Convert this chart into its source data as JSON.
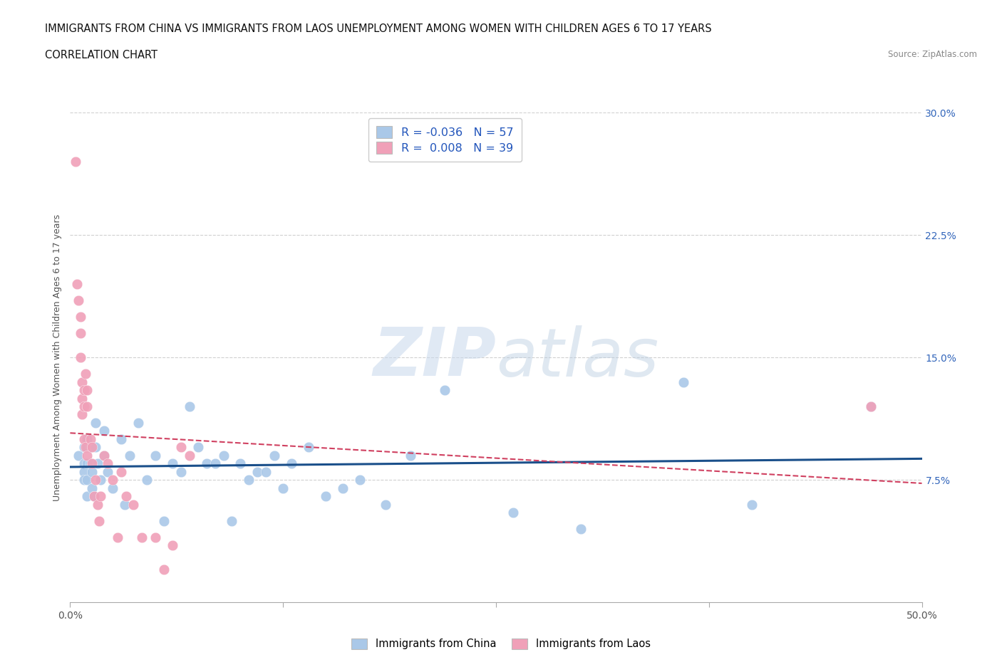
{
  "title_line1": "IMMIGRANTS FROM CHINA VS IMMIGRANTS FROM LAOS UNEMPLOYMENT AMONG WOMEN WITH CHILDREN AGES 6 TO 17 YEARS",
  "title_line2": "CORRELATION CHART",
  "source": "Source: ZipAtlas.com",
  "ylabel": "Unemployment Among Women with Children Ages 6 to 17 years",
  "xlim": [
    0.0,
    0.5
  ],
  "ylim": [
    0.0,
    0.3
  ],
  "xticks": [
    0.0,
    0.125,
    0.25,
    0.375,
    0.5
  ],
  "xtick_labels": [
    "0.0%",
    "",
    "",
    "",
    "50.0%"
  ],
  "ytick_labels_right": [
    "",
    "7.5%",
    "15.0%",
    "22.5%",
    "30.0%"
  ],
  "yticks_right": [
    0.0,
    0.075,
    0.15,
    0.225,
    0.3
  ],
  "watermark_zip": "ZIP",
  "watermark_atlas": "atlas",
  "legend_china_R": "-0.036",
  "legend_china_N": "57",
  "legend_laos_R": "0.008",
  "legend_laos_N": "39",
  "china_color": "#aac8e8",
  "laos_color": "#f0a0b8",
  "china_line_color": "#1a4f8a",
  "laos_line_color": "#d04060",
  "china_x": [
    0.005,
    0.008,
    0.008,
    0.008,
    0.008,
    0.01,
    0.01,
    0.01,
    0.01,
    0.01,
    0.012,
    0.012,
    0.013,
    0.013,
    0.014,
    0.015,
    0.015,
    0.016,
    0.018,
    0.02,
    0.02,
    0.022,
    0.025,
    0.03,
    0.032,
    0.035,
    0.04,
    0.045,
    0.05,
    0.055,
    0.06,
    0.065,
    0.07,
    0.075,
    0.08,
    0.085,
    0.09,
    0.095,
    0.1,
    0.105,
    0.11,
    0.115,
    0.12,
    0.125,
    0.13,
    0.14,
    0.15,
    0.16,
    0.17,
    0.185,
    0.2,
    0.22,
    0.26,
    0.3,
    0.36,
    0.4,
    0.47
  ],
  "china_y": [
    0.09,
    0.095,
    0.085,
    0.08,
    0.075,
    0.1,
    0.095,
    0.085,
    0.075,
    0.065,
    0.095,
    0.085,
    0.08,
    0.07,
    0.065,
    0.11,
    0.095,
    0.085,
    0.075,
    0.105,
    0.09,
    0.08,
    0.07,
    0.1,
    0.06,
    0.09,
    0.11,
    0.075,
    0.09,
    0.05,
    0.085,
    0.08,
    0.12,
    0.095,
    0.085,
    0.085,
    0.09,
    0.05,
    0.085,
    0.075,
    0.08,
    0.08,
    0.09,
    0.07,
    0.085,
    0.095,
    0.065,
    0.07,
    0.075,
    0.06,
    0.09,
    0.13,
    0.055,
    0.045,
    0.135,
    0.06,
    0.12
  ],
  "laos_x": [
    0.003,
    0.004,
    0.005,
    0.006,
    0.006,
    0.006,
    0.007,
    0.007,
    0.007,
    0.008,
    0.008,
    0.008,
    0.009,
    0.009,
    0.01,
    0.01,
    0.01,
    0.012,
    0.013,
    0.013,
    0.014,
    0.015,
    0.016,
    0.017,
    0.018,
    0.02,
    0.022,
    0.025,
    0.028,
    0.03,
    0.033,
    0.037,
    0.042,
    0.05,
    0.055,
    0.06,
    0.065,
    0.07,
    0.47
  ],
  "laos_y": [
    0.27,
    0.195,
    0.185,
    0.175,
    0.165,
    0.15,
    0.135,
    0.125,
    0.115,
    0.13,
    0.12,
    0.1,
    0.095,
    0.14,
    0.13,
    0.12,
    0.09,
    0.1,
    0.095,
    0.085,
    0.065,
    0.075,
    0.06,
    0.05,
    0.065,
    0.09,
    0.085,
    0.075,
    0.04,
    0.08,
    0.065,
    0.06,
    0.04,
    0.04,
    0.02,
    0.035,
    0.095,
    0.09,
    0.12
  ],
  "bg_color": "#ffffff",
  "grid_color": "#d0d0d0"
}
